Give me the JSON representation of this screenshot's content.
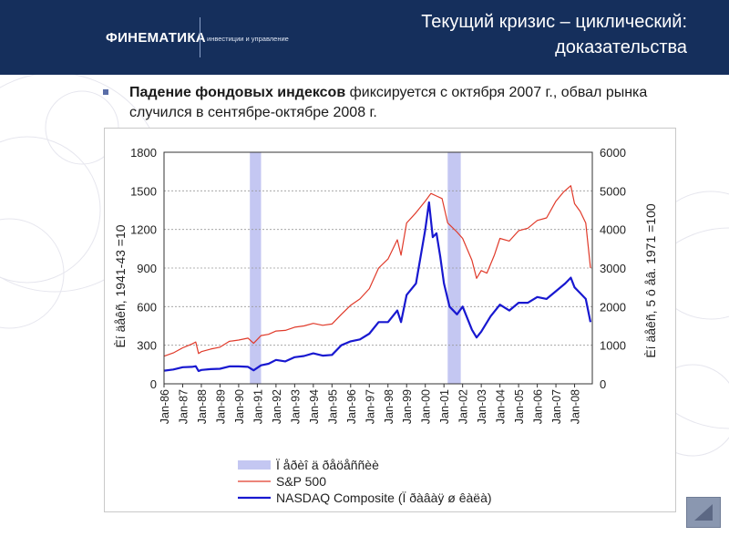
{
  "header": {
    "logo_text": "ФИНЕМАТИКА",
    "logo_tagline": "инвестиции и управление",
    "title_line1": "Текущий кризис – циклический:",
    "title_line2": "доказательства"
  },
  "bullet": {
    "bold_text": "Падение фондовых индексов",
    "text": " фиксируется с октября 2007 г., обвал рынка случился в сентябре-октябре 2008 г."
  },
  "colors": {
    "header_bg": "#152f5c",
    "sp500": "#e03a2a",
    "nasdaq": "#1818d0",
    "recession": "#c4c7f2"
  },
  "chart_data": {
    "type": "line",
    "ylabel_left": "Èí äåêñ, 1941-43 =10",
    "ylabel_right": "Èí äåêñ, 5 ô åâ. 1971 =100",
    "ylim_left": [
      0,
      1800
    ],
    "ylim_right": [
      0,
      6000
    ],
    "yticks_left": [
      "0",
      "300",
      "600",
      "900",
      "1200",
      "1500",
      "1800"
    ],
    "yticks_right": [
      "0",
      "1000",
      "2000",
      "3000",
      "4000",
      "5000",
      "6000"
    ],
    "x_categories": [
      "Jan-86",
      "Jan-87",
      "Jan-88",
      "Jan-89",
      "Jan-90",
      "Jan-91",
      "Jan-92",
      "Jan-93",
      "Jan-94",
      "Jan-95",
      "Jan-96",
      "Jan-97",
      "Jan-98",
      "Jan-99",
      "Jan-00",
      "Jan-01",
      "Jan-02",
      "Jan-03",
      "Jan-04",
      "Jan-05",
      "Jan-06",
      "Jan-07",
      "Jan-08"
    ],
    "grid": true,
    "legend_position": "bottom",
    "recessions": [
      {
        "name": "Ï åðèî ä ðåöåññèè",
        "start": 1990.6,
        "end": 1991.2
      },
      {
        "name": "Ï åðèî ä ðåöåññèè",
        "start": 2001.2,
        "end": 2001.9
      }
    ],
    "series": [
      {
        "name": "S&P 500",
        "axis": "left",
        "x": [
          1986.0,
          1986.5,
          1987.0,
          1987.5,
          1987.7,
          1987.85,
          1988.0,
          1988.5,
          1989.0,
          1989.5,
          1990.0,
          1990.5,
          1990.8,
          1991.2,
          1991.6,
          1992.0,
          1992.5,
          1993.0,
          1993.5,
          1994.0,
          1994.5,
          1995.0,
          1995.5,
          1996.0,
          1996.5,
          1997.0,
          1997.5,
          1998.0,
          1998.5,
          1998.7,
          1999.0,
          1999.5,
          2000.0,
          2000.3,
          2000.6,
          2000.9,
          2001.2,
          2001.7,
          2002.0,
          2002.5,
          2002.75,
          2003.0,
          2003.3,
          2003.7,
          2004.0,
          2004.5,
          2005.0,
          2005.5,
          2006.0,
          2006.5,
          2007.0,
          2007.4,
          2007.8,
          2008.0,
          2008.3,
          2008.6,
          2008.85
        ],
        "values": [
          215,
          240,
          280,
          310,
          325,
          235,
          250,
          270,
          285,
          330,
          340,
          355,
          315,
          375,
          385,
          410,
          415,
          440,
          450,
          470,
          455,
          465,
          540,
          610,
          660,
          740,
          900,
          970,
          1120,
          1000,
          1250,
          1330,
          1420,
          1480,
          1460,
          1440,
          1250,
          1180,
          1130,
          960,
          820,
          880,
          860,
          1000,
          1130,
          1110,
          1190,
          1210,
          1270,
          1290,
          1420,
          1490,
          1540,
          1400,
          1340,
          1250,
          900
        ]
      },
      {
        "name": "NASDAQ Composite (Ï ðàâàÿ ø êàëà)",
        "axis": "right",
        "x": [
          1986.0,
          1986.5,
          1987.0,
          1987.5,
          1987.7,
          1987.85,
          1988.0,
          1988.5,
          1989.0,
          1989.5,
          1990.0,
          1990.5,
          1990.8,
          1991.2,
          1991.6,
          1992.0,
          1992.5,
          1993.0,
          1993.5,
          1994.0,
          1994.5,
          1995.0,
          1995.5,
          1996.0,
          1996.5,
          1997.0,
          1997.5,
          1998.0,
          1998.5,
          1998.7,
          1999.0,
          1999.5,
          2000.0,
          2000.2,
          2000.4,
          2000.6,
          2000.8,
          2001.0,
          2001.3,
          2001.7,
          2002.0,
          2002.5,
          2002.75,
          2003.0,
          2003.5,
          2004.0,
          2004.5,
          2005.0,
          2005.5,
          2006.0,
          2006.5,
          2007.0,
          2007.5,
          2007.8,
          2008.0,
          2008.3,
          2008.6,
          2008.85
        ],
        "values": [
          340,
          370,
          430,
          440,
          455,
          330,
          360,
          380,
          390,
          450,
          450,
          440,
          350,
          480,
          520,
          620,
          580,
          690,
          720,
          790,
          730,
          750,
          1000,
          1100,
          1150,
          1300,
          1600,
          1600,
          1900,
          1600,
          2300,
          2600,
          4000,
          4700,
          3800,
          3900,
          3300,
          2600,
          2000,
          1800,
          2000,
          1400,
          1200,
          1350,
          1750,
          2050,
          1900,
          2100,
          2100,
          2250,
          2200,
          2400,
          2600,
          2750,
          2500,
          2350,
          2200,
          1600
        ]
      }
    ]
  }
}
